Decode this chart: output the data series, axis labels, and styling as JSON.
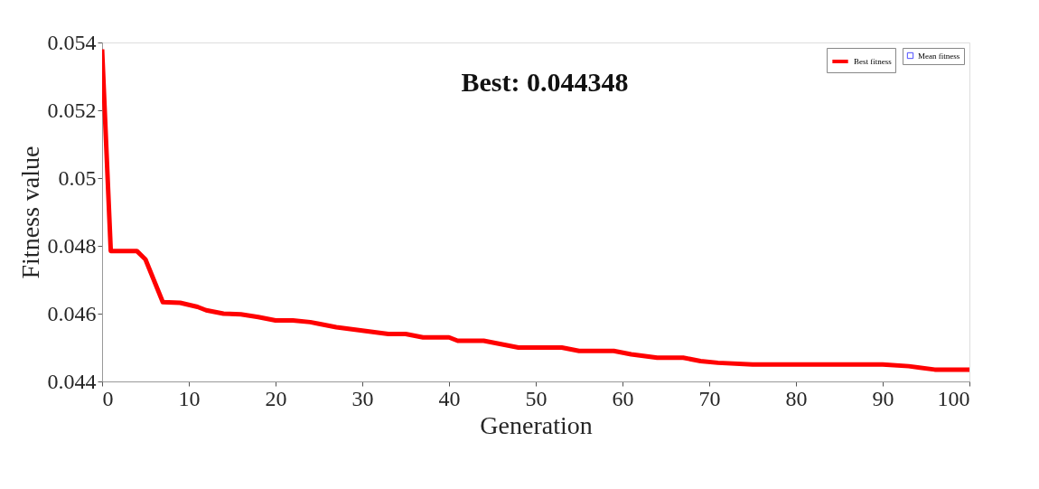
{
  "chart_data": {
    "type": "line",
    "title": "Best: 0.044348",
    "xlabel": "Generation",
    "ylabel": "Fitness value",
    "xlim": [
      0,
      100
    ],
    "xticks": [
      0,
      10,
      20,
      30,
      40,
      50,
      60,
      70,
      80,
      90,
      100
    ],
    "ylim": [
      0.044,
      0.054
    ],
    "yticks": [
      0.044,
      0.046,
      0.048,
      0.05,
      0.052,
      0.054
    ],
    "grid": false,
    "legend": "top right",
    "series": [
      {
        "name": "Best fitness",
        "line_style": "solid",
        "color": "#ff0000",
        "marker": "none",
        "x": [
          0,
          1,
          4,
          5,
          7,
          9,
          11,
          12,
          14,
          16,
          18,
          20,
          22,
          24,
          25,
          27,
          30,
          33,
          35,
          37,
          40,
          41,
          44,
          46,
          48,
          53,
          55,
          59,
          61,
          64,
          67,
          69,
          71,
          75,
          90,
          93,
          96,
          100
        ],
        "values": [
          0.0538,
          0.04785,
          0.04785,
          0.0476,
          0.04634,
          0.04632,
          0.0462,
          0.0461,
          0.046,
          0.04598,
          0.0459,
          0.0458,
          0.0458,
          0.04575,
          0.0457,
          0.0456,
          0.0455,
          0.0454,
          0.0454,
          0.0453,
          0.0453,
          0.0452,
          0.0452,
          0.0451,
          0.045,
          0.045,
          0.0449,
          0.0449,
          0.0448,
          0.0447,
          0.0447,
          0.0446,
          0.04455,
          0.0445,
          0.0445,
          0.04445,
          0.04435,
          0.04435
        ]
      },
      {
        "name": "Mean fitness",
        "type": "scatter",
        "color": "#0000ff",
        "marker": "square"
      }
    ]
  }
}
